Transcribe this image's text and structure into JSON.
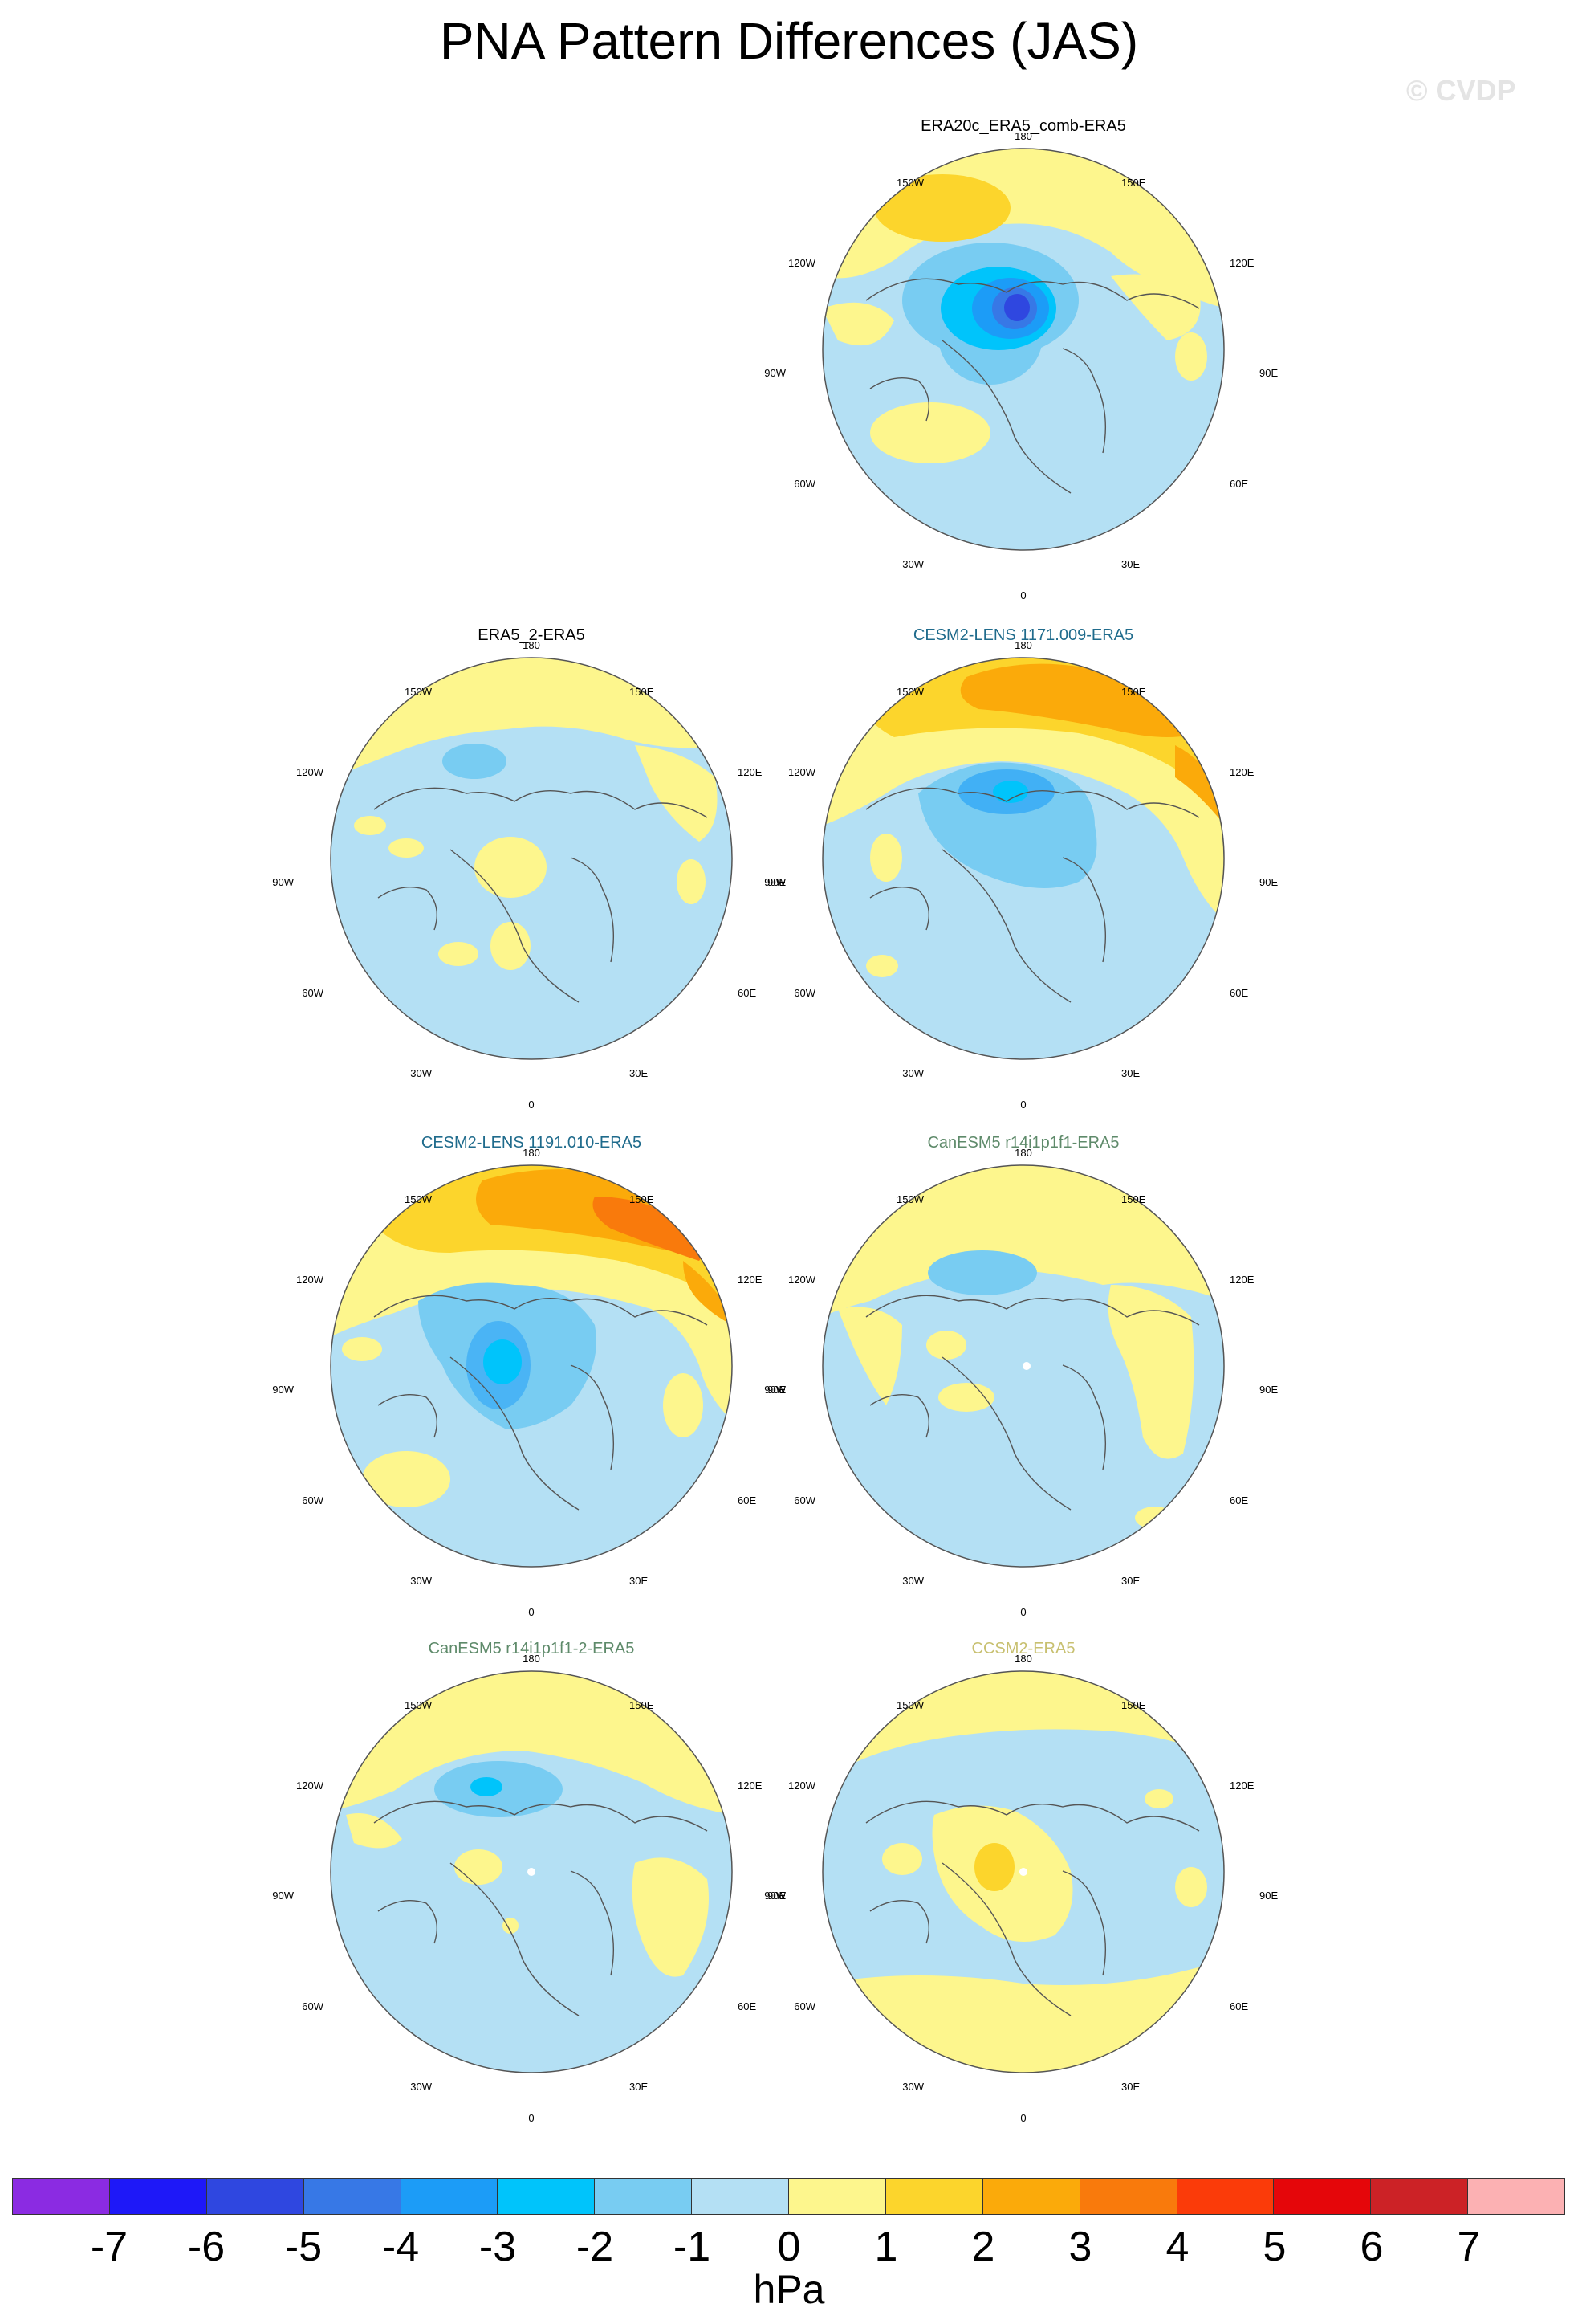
{
  "title": "PNA Pattern Differences (JAS)",
  "watermark": "© CVDP",
  "longitude_labels": [
    "180",
    "150E",
    "120E",
    "90E",
    "60E",
    "30E",
    "0",
    "30W",
    "60W",
    "90W",
    "120W",
    "150W"
  ],
  "colorbar": {
    "colors": [
      "#8b2be2",
      "#1e18f8",
      "#2f47e0",
      "#3778e6",
      "#1c9cf7",
      "#00c4fb",
      "#78ccf2",
      "#b4e0f4",
      "#fdf68d",
      "#fcd52c",
      "#fbaa0a",
      "#f97a0c",
      "#fb3b09",
      "#e5060a",
      "#cc2226",
      "#fcb1b3"
    ],
    "ticks": [
      "-7",
      "-6",
      "-5",
      "-4",
      "-3",
      "-2",
      "-1",
      "0",
      "1",
      "2",
      "3",
      "4",
      "5",
      "6",
      "7"
    ],
    "units": "hPa"
  },
  "panels": [
    {
      "title": "ERA20c_ERA5_comb-ERA5",
      "title_color": "#000000"
    },
    {
      "title": "ERA5_2-ERA5",
      "title_color": "#000000"
    },
    {
      "title": "CESM2-LENS 1171.009-ERA5",
      "title_color": "#1f6b8c"
    },
    {
      "title": "CESM2-LENS 1191.010-ERA5",
      "title_color": "#1f6b8c"
    },
    {
      "title": "CanESM5 r14i1p1f1-ERA5",
      "title_color": "#5e8a6a"
    },
    {
      "title": "CanESM5 r14i1p1f1-2-ERA5",
      "title_color": "#5e8a6a"
    },
    {
      "title": "CCSM2-ERA5",
      "title_color": "#c8c070"
    }
  ]
}
